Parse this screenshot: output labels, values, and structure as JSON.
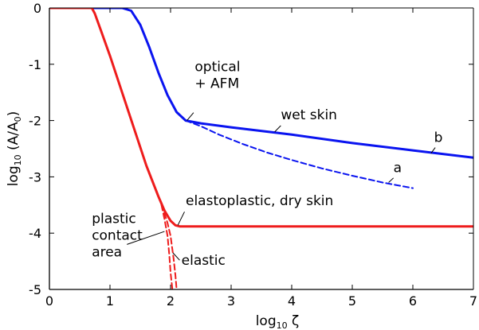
{
  "chart_data": {
    "type": "line",
    "title": "",
    "xlabel": "log10 ζ",
    "xlabel_parts": {
      "base": "log",
      "sub": "10",
      "rest": " ζ"
    },
    "ylabel": "log10 (A/A0)",
    "ylabel_parts": {
      "base": "log",
      "sub": "10",
      "mid": " (A/A",
      "sub2": "0",
      "end": ")"
    },
    "xlim": [
      0,
      7
    ],
    "ylim": [
      -5,
      0
    ],
    "xticks": [
      0,
      1,
      2,
      3,
      4,
      5,
      6,
      7
    ],
    "xtick_labels": [
      "0",
      "1",
      "2",
      "3",
      "4",
      "5",
      "6",
      "7"
    ],
    "yticks": [
      0,
      -1,
      -2,
      -3,
      -4,
      -5
    ],
    "ytick_labels": [
      "0",
      "-1",
      "-2",
      "-3",
      "-4",
      "-5"
    ],
    "grid": false,
    "colors": {
      "blue": "#0a14f0",
      "red": "#ee1c1c"
    },
    "series": [
      {
        "color": "blue",
        "style": "solid",
        "x": [
          0,
          1.2,
          1.35,
          1.5,
          1.65,
          1.8,
          1.95,
          2.1,
          2.25,
          2.5,
          3,
          4,
          5,
          6,
          7
        ],
        "y": [
          0,
          0,
          -0.05,
          -0.3,
          -0.7,
          -1.15,
          -1.55,
          -1.85,
          -2.0,
          -2.05,
          -2.12,
          -2.25,
          -2.4,
          -2.53,
          -2.66
        ]
      },
      {
        "color": "blue",
        "style": "dashed",
        "x": [
          2.25,
          2.5,
          2.8,
          3.2,
          3.6,
          4,
          4.5,
          5,
          5.5,
          6
        ],
        "y": [
          -2.0,
          -2.1,
          -2.25,
          -2.42,
          -2.57,
          -2.7,
          -2.85,
          -2.98,
          -3.1,
          -3.2
        ]
      },
      {
        "color": "red",
        "style": "solid",
        "x": [
          0,
          0.7,
          0.75,
          0.85,
          1.0,
          1.2,
          1.4,
          1.6,
          1.8,
          1.9,
          2.0,
          2.08,
          2.15,
          2.3,
          3,
          4,
          5,
          6,
          7
        ],
        "y": [
          0,
          0,
          -0.1,
          -0.4,
          -0.85,
          -1.5,
          -2.15,
          -2.8,
          -3.35,
          -3.6,
          -3.78,
          -3.86,
          -3.88,
          -3.88,
          -3.88,
          -3.88,
          -3.88,
          -3.88,
          -3.88
        ]
      },
      {
        "color": "red",
        "style": "dashed",
        "x": [
          1.85,
          1.9,
          1.95,
          1.98,
          2.0,
          2.03
        ],
        "y": [
          -3.5,
          -3.75,
          -4.05,
          -4.4,
          -4.7,
          -5.0
        ]
      },
      {
        "color": "red",
        "style": "dashed",
        "x": [
          1.75,
          1.82,
          1.9,
          1.95,
          2.0,
          2.05,
          2.08,
          2.1
        ],
        "y": [
          -3.2,
          -3.4,
          -3.65,
          -3.82,
          -4.05,
          -4.45,
          -4.75,
          -5.0
        ]
      }
    ],
    "annotations": [
      {
        "lines": [
          "optical",
          "+ AFM"
        ],
        "x": 2.4,
        "y": -1.12,
        "anchor": "start",
        "leader_from": [
          2.38,
          -1.86
        ],
        "leader_to": [
          2.27,
          -2.0
        ]
      },
      {
        "lines": [
          "wet skin"
        ],
        "x": 3.82,
        "y": -1.98,
        "anchor": "start",
        "leader_from": [
          3.82,
          -2.09
        ],
        "leader_to": [
          3.72,
          -2.2
        ]
      },
      {
        "lines": [
          "b"
        ],
        "x": 6.35,
        "y": -2.38,
        "anchor": "start",
        "leader_from": [
          6.37,
          -2.48
        ],
        "leader_to": [
          6.3,
          -2.58
        ]
      },
      {
        "lines": [
          "a"
        ],
        "x": 5.68,
        "y": -2.92,
        "anchor": "start",
        "leader_from": [
          5.68,
          -3.02
        ],
        "leader_to": [
          5.6,
          -3.1
        ]
      },
      {
        "lines": [
          "elastoplastic, dry skin"
        ],
        "x": 2.25,
        "y": -3.5,
        "anchor": "start",
        "leader_from": [
          2.23,
          -3.62
        ],
        "leader_to": [
          2.12,
          -3.86
        ]
      },
      {
        "lines": [
          "plastic",
          "contact",
          "area"
        ],
        "x": 0.7,
        "y": -3.82,
        "anchor": "start",
        "leader_from": [
          1.28,
          -4.2
        ],
        "leader_to": [
          1.9,
          -3.97
        ]
      },
      {
        "lines": [
          "elastic"
        ],
        "x": 2.18,
        "y": -4.56,
        "anchor": "start",
        "leader_from": [
          2.15,
          -4.48
        ],
        "leader_to": [
          2.04,
          -4.35
        ]
      }
    ]
  }
}
